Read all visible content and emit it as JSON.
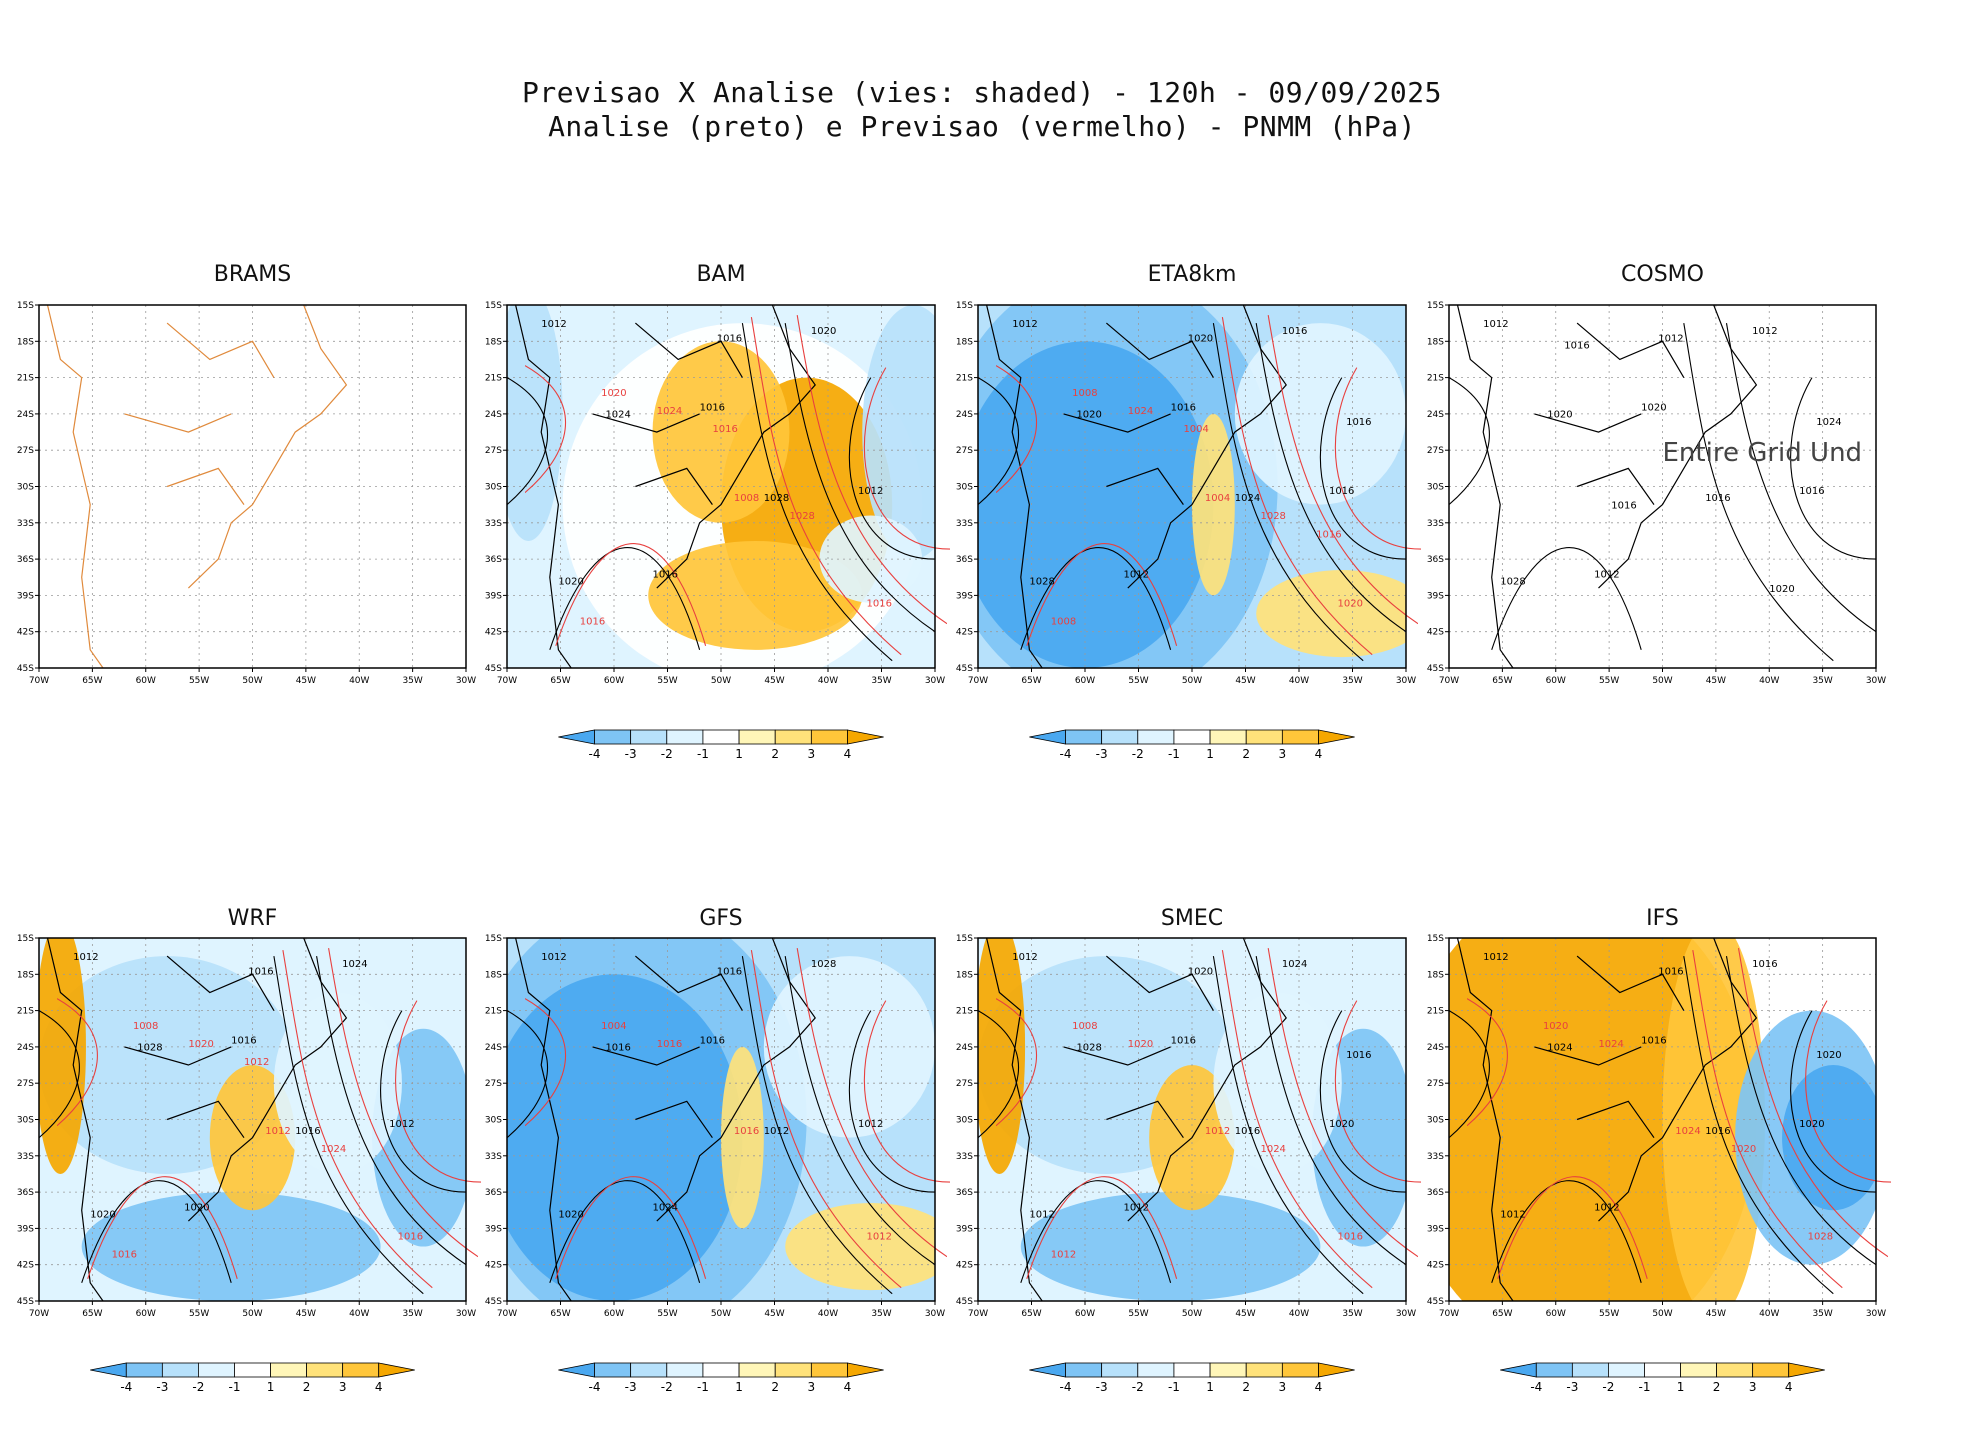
{
  "header": {
    "title_line1": "Previsao X Analise (vies: shaded) - 120h - 09/09/2025",
    "title_line2": "Analise (preto) e Previsao (vermelho) - PNMM (hPa)"
  },
  "axes": {
    "lat_ticks": [
      "15S",
      "18S",
      "21S",
      "24S",
      "27S",
      "30S",
      "33S",
      "36S",
      "39S",
      "42S",
      "45S"
    ],
    "lon_ticks": [
      "70W",
      "65W",
      "60W",
      "55W",
      "50W",
      "45W",
      "40W",
      "35W",
      "30W"
    ]
  },
  "colorbar": {
    "labels": [
      "-4",
      "-3",
      "-2",
      "-1",
      "1",
      "2",
      "3",
      "4"
    ],
    "colors": [
      "#4aa8f0",
      "#7ec4f5",
      "#b7e1fb",
      "#dff4ff",
      "#ffffff",
      "#fff6b8",
      "#ffe27a",
      "#ffc63a",
      "#f5a700"
    ]
  },
  "colors": {
    "analysis": "#000000",
    "forecast": "#e8403f",
    "coast": "#e08a3c"
  },
  "chart_data": [
    {
      "type": "heatmap",
      "model": "BRAMS",
      "bias": "none",
      "note": "",
      "labels_black": [],
      "labels_red": [],
      "colorbar": false
    },
    {
      "type": "heatmap",
      "model": "BAM",
      "bias": "positive-east",
      "note": "",
      "labels_black": [
        "1012",
        "1016",
        "1012",
        "1016",
        "1020",
        "1024",
        "1028",
        "1020",
        "1016"
      ],
      "labels_red": [
        "1020",
        "1008",
        "1016",
        "1024",
        "1028",
        "1016",
        "1016"
      ],
      "colorbar": true
    },
    {
      "type": "heatmap",
      "model": "ETA8km",
      "bias": "negative-west",
      "note": "",
      "labels_black": [
        "1012",
        "1016",
        "1016",
        "1012",
        "1016",
        "1020",
        "1024",
        "1028",
        "1020",
        "1016"
      ],
      "labels_red": [
        "1008",
        "1004",
        "1020",
        "1024",
        "1028",
        "1008",
        "1004",
        "1016"
      ],
      "colorbar": true
    },
    {
      "type": "heatmap",
      "model": "COSMO",
      "bias": "none",
      "note": "Entire Grid Und",
      "labels_black": [
        "1012",
        "1020",
        "1016",
        "1012",
        "1012",
        "1020",
        "1016",
        "1028",
        "1012",
        "1024",
        "1016",
        "1020",
        "1016"
      ],
      "labels_red": [],
      "colorbar": false
    },
    {
      "type": "heatmap",
      "model": "WRF",
      "bias": "mixed",
      "note": "",
      "labels_black": [
        "1012",
        "1016",
        "1012",
        "1020",
        "1024",
        "1028",
        "1016",
        "1020",
        "1016"
      ],
      "labels_red": [
        "1008",
        "1012",
        "1016",
        "1020",
        "1024",
        "1016",
        "1012"
      ],
      "colorbar": true
    },
    {
      "type": "heatmap",
      "model": "GFS",
      "bias": "negative-west",
      "note": "",
      "labels_black": [
        "1012",
        "1016",
        "1012",
        "1024",
        "1028",
        "1016",
        "1012",
        "1020",
        "1016"
      ],
      "labels_red": [
        "1004",
        "1016",
        "1012",
        "1016"
      ],
      "colorbar": true
    },
    {
      "type": "heatmap",
      "model": "SMEC",
      "bias": "mixed",
      "note": "",
      "labels_black": [
        "1012",
        "1016",
        "1020",
        "1012",
        "1024",
        "1028",
        "1016",
        "1012",
        "1020",
        "1016"
      ],
      "labels_red": [
        "1008",
        "1012",
        "1016",
        "1020",
        "1024",
        "1012"
      ],
      "colorbar": true
    },
    {
      "type": "heatmap",
      "model": "IFS",
      "bias": "strong-positive",
      "note": "",
      "labels_black": [
        "1012",
        "1016",
        "1020",
        "1012",
        "1016",
        "1024",
        "1016",
        "1012",
        "1016",
        "1020"
      ],
      "labels_red": [
        "1020",
        "1024",
        "1028",
        "1024",
        "1020"
      ],
      "colorbar": true
    }
  ]
}
